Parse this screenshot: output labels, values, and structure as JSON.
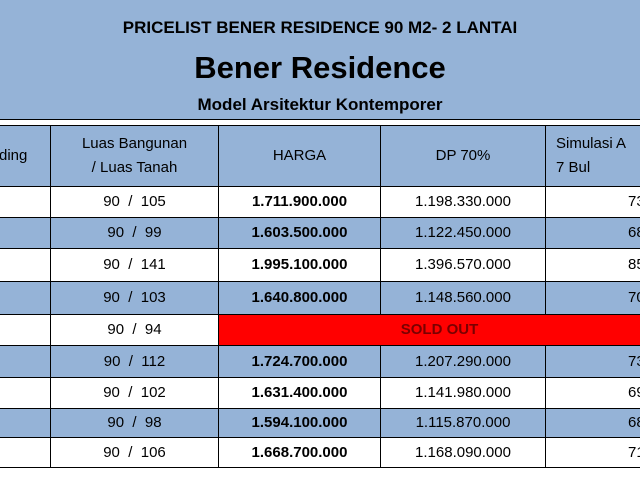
{
  "header": {
    "title": "PRICELIST BENER RESIDENCE 90 M2- 2 LANTAI",
    "name": "Bener Residence",
    "subtitle": "Model Arsitektur Kontemporer"
  },
  "table": {
    "columns": [
      "ding",
      "Luas Bangunan / Luas Tanah",
      "HARGA",
      "DP 70%",
      [
        "Simulasi A",
        "7 Bul"
      ]
    ],
    "rows": [
      {
        "luas": "90  /  105",
        "harga": "1.711.900.000",
        "dp": "1.198.330.000",
        "simulasi": "73"
      },
      {
        "luas": "90  /  99",
        "harga": "1.603.500.000",
        "dp": "1.122.450.000",
        "simulasi": "68"
      },
      {
        "luas": "90  /  141",
        "harga": "1.995.100.000",
        "dp": "1.396.570.000",
        "simulasi": "85"
      },
      {
        "luas": "90  /  103",
        "harga": "1.640.800.000",
        "dp": "1.148.560.000",
        "simulasi": "70"
      },
      {
        "luas": "90  /  94",
        "status": "SOLD OUT"
      },
      {
        "luas": "90  /  112",
        "harga": "1.724.700.000",
        "dp": "1.207.290.000",
        "simulasi": "73"
      },
      {
        "luas": "90  /  102",
        "harga": "1.631.400.000",
        "dp": "1.141.980.000",
        "simulasi": "69"
      },
      {
        "luas": "90  /  98",
        "harga": "1.594.100.000",
        "dp": "1.115.870.000",
        "simulasi": "68"
      },
      {
        "luas": "90  /  106",
        "harga": "1.668.700.000",
        "dp": "1.168.090.000",
        "simulasi": "71"
      }
    ]
  }
}
